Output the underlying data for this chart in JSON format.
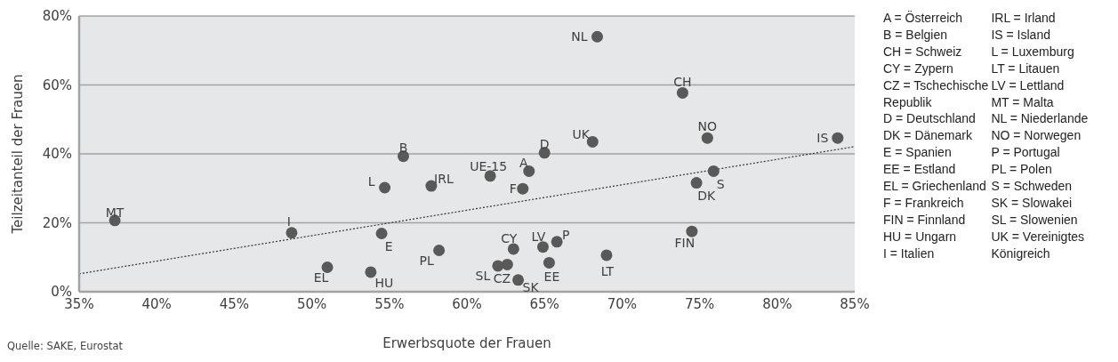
{
  "chart_data": {
    "type": "scatter",
    "xlabel": "Erwerbsquote der Frauen",
    "ylabel": "Teilzeitanteil der Frauen",
    "xlim": [
      35,
      85
    ],
    "xticks": [
      {
        "value": 35,
        "label": "35%"
      },
      {
        "value": 40,
        "label": "40%"
      },
      {
        "value": 45,
        "label": "45%"
      },
      {
        "value": 50,
        "label": "50%"
      },
      {
        "value": 55,
        "label": "55%"
      },
      {
        "value": 60,
        "label": "60%"
      },
      {
        "value": 65,
        "label": "65%"
      },
      {
        "value": 70,
        "label": "70%"
      },
      {
        "value": 75,
        "label": "75%"
      },
      {
        "value": 80,
        "label": "80%"
      },
      {
        "value": 85,
        "label": "85%"
      }
    ],
    "ylim": [
      0,
      80
    ],
    "yticks": [
      {
        "value": 0,
        "label": "0%"
      },
      {
        "value": 20,
        "label": "20%"
      },
      {
        "value": 40,
        "label": "40%"
      },
      {
        "value": 60,
        "label": "60%"
      },
      {
        "value": 80,
        "label": "80%"
      }
    ],
    "grid": "y",
    "series": [
      {
        "type": "scatter",
        "marker": "circle",
        "color": "#595959",
        "x": [
          37.3,
          48.7,
          51.0,
          53.8,
          54.5,
          54.7,
          55.9,
          57.7,
          58.2,
          61.5,
          64.0,
          63.6,
          65.0,
          68.1,
          68.4,
          73.9,
          75.5,
          83.9,
          75.9,
          74.8,
          74.5,
          63.0,
          64.9,
          65.8,
          69.0,
          62.0,
          62.6,
          63.3,
          65.3
        ],
        "values": [
          20.7,
          17.1,
          7.1,
          5.7,
          16.9,
          30.2,
          39.3,
          30.7,
          12.0,
          33.6,
          35.0,
          29.9,
          40.3,
          43.5,
          74.0,
          57.7,
          44.6,
          44.6,
          35.0,
          31.6,
          17.5,
          12.4,
          13.0,
          14.5,
          10.6,
          7.5,
          7.9,
          3.4,
          8.4
        ]
      },
      {
        "type": "line",
        "color": "#333333",
        "line_style": "dotted",
        "x": [
          35,
          85
        ],
        "values": [
          5.2,
          42.1
        ]
      }
    ],
    "annotations": [
      {
        "text": "MT",
        "x": 37.3,
        "y": 20.7
      },
      {
        "text": "I",
        "x": 48.7,
        "y": 17.1
      },
      {
        "text": "EL",
        "x": 51.0,
        "y": 7.1
      },
      {
        "text": "HU",
        "x": 53.8,
        "y": 5.7
      },
      {
        "text": "E",
        "x": 54.5,
        "y": 16.9
      },
      {
        "text": "L",
        "x": 54.7,
        "y": 30.2
      },
      {
        "text": "B",
        "x": 55.9,
        "y": 39.3
      },
      {
        "text": "IRL",
        "x": 57.7,
        "y": 30.7
      },
      {
        "text": "PL",
        "x": 58.2,
        "y": 12.0
      },
      {
        "text": "UE-15",
        "x": 61.5,
        "y": 33.6
      },
      {
        "text": "A",
        "x": 64.0,
        "y": 35.0
      },
      {
        "text": "F",
        "x": 63.6,
        "y": 29.9
      },
      {
        "text": "D",
        "x": 65.0,
        "y": 40.3
      },
      {
        "text": "UK",
        "x": 68.1,
        "y": 43.5
      },
      {
        "text": "NL",
        "x": 68.4,
        "y": 74.0
      },
      {
        "text": "CH",
        "x": 73.9,
        "y": 57.7
      },
      {
        "text": "NO",
        "x": 75.5,
        "y": 44.6
      },
      {
        "text": "IS",
        "x": 83.9,
        "y": 44.6
      },
      {
        "text": "S",
        "x": 75.9,
        "y": 35.0
      },
      {
        "text": "DK",
        "x": 74.8,
        "y": 31.6
      },
      {
        "text": "FIN",
        "x": 74.5,
        "y": 17.5
      },
      {
        "text": "CY",
        "x": 63.0,
        "y": 12.4
      },
      {
        "text": "LV",
        "x": 64.9,
        "y": 13.0
      },
      {
        "text": "P",
        "x": 65.8,
        "y": 14.5
      },
      {
        "text": "LT",
        "x": 69.0,
        "y": 10.6
      },
      {
        "text": "SL",
        "x": 62.0,
        "y": 7.5
      },
      {
        "text": "CZ",
        "x": 62.6,
        "y": 7.9
      },
      {
        "text": "SK",
        "x": 63.3,
        "y": 3.4
      },
      {
        "text": "EE",
        "x": 65.3,
        "y": 8.4
      },
      "A = Österreich",
      "B = Belgien",
      "CH = Schweiz",
      "CY = Zypern",
      "CZ = Tschechische",
      "Republik",
      "D = Deutschland",
      "DK = Dänemark",
      "E = Spanien",
      "EE = Estland",
      "EL = Griechenland",
      "F = Frankreich",
      "FIN = Finnland",
      "HU = Ungarn",
      "I = Italien",
      "IRL = Irland",
      "IS = Island",
      "L = Luxemburg",
      "LT = Litauen",
      "LV = Lettland",
      "MT = Malta",
      "NL = Niederlande",
      "NO = Norwegen",
      "P = Portugal",
      "PL = Polen",
      "S = Schweden",
      "SK = Slowakei",
      "SL = Slowenien",
      "UK = Vereinigtes",
      "Königreich",
      "Quelle: SAKE, Eurostat"
    ]
  }
}
